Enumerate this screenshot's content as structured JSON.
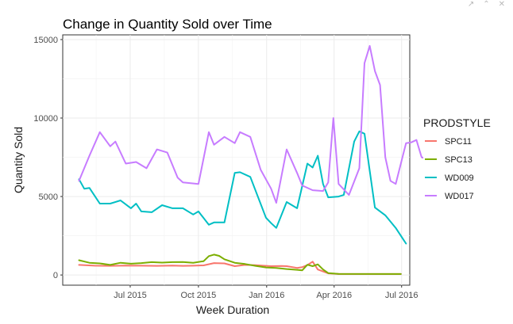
{
  "window_controls": {
    "export_icon": "↗",
    "collapse_icon": "⌃",
    "close_icon": "✕"
  },
  "chart_data": {
    "type": "line",
    "title": "Change in Quantity Sold over Time",
    "xlabel": "Week Duration",
    "ylabel": "Quantity Sold",
    "x_ticks": [
      "Jul 2015",
      "Oct 2015",
      "Jan 2016",
      "Apr 2016",
      "Jul 2016"
    ],
    "x_tick_dates": [
      "2015-07-01",
      "2015-10-01",
      "2016-01-01",
      "2016-04-01",
      "2016-07-01"
    ],
    "xlim": [
      "2015-04-01",
      "2016-07-12"
    ],
    "y_ticks": [
      "0",
      "5000",
      "10000",
      "15000"
    ],
    "y_tick_values": [
      0,
      5000,
      10000,
      15000
    ],
    "ylim": [
      -650,
      15300
    ],
    "grid": true,
    "legend_title": "PRODSTYLE",
    "legend_position": "right",
    "series": [
      {
        "name": "SPC11",
        "color": "#F8766D",
        "points": [
          [
            "2015-04-23",
            640
          ],
          [
            "2015-05-14",
            590
          ],
          [
            "2015-06-04",
            580
          ],
          [
            "2015-06-25",
            600
          ],
          [
            "2015-07-16",
            590
          ],
          [
            "2015-08-06",
            580
          ],
          [
            "2015-08-27",
            600
          ],
          [
            "2015-09-10",
            580
          ],
          [
            "2015-09-24",
            590
          ],
          [
            "2015-10-08",
            610
          ],
          [
            "2015-10-22",
            760
          ],
          [
            "2015-11-05",
            740
          ],
          [
            "2015-11-19",
            560
          ],
          [
            "2015-12-03",
            640
          ],
          [
            "2015-12-17",
            620
          ],
          [
            "2016-01-07",
            560
          ],
          [
            "2016-01-21",
            570
          ],
          [
            "2016-01-28",
            560
          ],
          [
            "2016-02-11",
            450
          ],
          [
            "2016-02-18",
            500
          ],
          [
            "2016-02-25",
            630
          ],
          [
            "2016-03-03",
            850
          ],
          [
            "2016-03-10",
            350
          ],
          [
            "2016-03-24",
            100
          ],
          [
            "2016-04-07",
            60
          ],
          [
            "2016-06-30",
            60
          ]
        ]
      },
      {
        "name": "SPC13",
        "color": "#7CAE00",
        "points": [
          [
            "2015-04-23",
            940
          ],
          [
            "2015-05-07",
            780
          ],
          [
            "2015-05-21",
            740
          ],
          [
            "2015-06-04",
            640
          ],
          [
            "2015-06-18",
            780
          ],
          [
            "2015-07-02",
            720
          ],
          [
            "2015-07-16",
            760
          ],
          [
            "2015-07-30",
            820
          ],
          [
            "2015-08-13",
            790
          ],
          [
            "2015-08-27",
            820
          ],
          [
            "2015-09-10",
            830
          ],
          [
            "2015-09-24",
            780
          ],
          [
            "2015-10-08",
            880
          ],
          [
            "2015-10-15",
            1200
          ],
          [
            "2015-10-22",
            1300
          ],
          [
            "2015-10-29",
            1220
          ],
          [
            "2015-11-05",
            1000
          ],
          [
            "2015-11-19",
            780
          ],
          [
            "2015-12-03",
            700
          ],
          [
            "2015-12-17",
            580
          ],
          [
            "2015-12-31",
            480
          ],
          [
            "2016-01-14",
            450
          ],
          [
            "2016-01-28",
            380
          ],
          [
            "2016-02-11",
            330
          ],
          [
            "2016-02-18",
            300
          ],
          [
            "2016-02-25",
            650
          ],
          [
            "2016-03-03",
            560
          ],
          [
            "2016-03-10",
            680
          ],
          [
            "2016-03-17",
            350
          ],
          [
            "2016-03-24",
            120
          ],
          [
            "2016-04-07",
            70
          ],
          [
            "2016-06-30",
            60
          ]
        ]
      },
      {
        "name": "WD009",
        "color": "#00BFC4",
        "points": [
          [
            "2015-04-23",
            6100
          ],
          [
            "2015-04-30",
            5500
          ],
          [
            "2015-05-07",
            5550
          ],
          [
            "2015-05-21",
            4550
          ],
          [
            "2015-06-04",
            4550
          ],
          [
            "2015-06-18",
            4750
          ],
          [
            "2015-07-02",
            4250
          ],
          [
            "2015-07-09",
            4550
          ],
          [
            "2015-07-16",
            4050
          ],
          [
            "2015-07-30",
            4000
          ],
          [
            "2015-08-13",
            4450
          ],
          [
            "2015-08-27",
            4250
          ],
          [
            "2015-09-10",
            4250
          ],
          [
            "2015-09-24",
            3850
          ],
          [
            "2015-10-01",
            4050
          ],
          [
            "2015-10-15",
            3200
          ],
          [
            "2015-10-22",
            3350
          ],
          [
            "2015-11-05",
            3350
          ],
          [
            "2015-11-19",
            6500
          ],
          [
            "2015-11-26",
            6550
          ],
          [
            "2015-12-10",
            6250
          ],
          [
            "2015-12-31",
            3650
          ],
          [
            "2016-01-07",
            3300
          ],
          [
            "2016-01-14",
            3000
          ],
          [
            "2016-01-28",
            4650
          ],
          [
            "2016-02-11",
            4250
          ],
          [
            "2016-02-25",
            7100
          ],
          [
            "2016-03-03",
            6850
          ],
          [
            "2016-03-10",
            7600
          ],
          [
            "2016-03-17",
            5800
          ],
          [
            "2016-03-24",
            4950
          ],
          [
            "2016-04-07",
            5000
          ],
          [
            "2016-04-14",
            5100
          ],
          [
            "2016-04-28",
            8500
          ],
          [
            "2016-05-05",
            9150
          ],
          [
            "2016-05-12",
            9000
          ],
          [
            "2016-05-26",
            4300
          ],
          [
            "2016-06-09",
            3800
          ],
          [
            "2016-06-23",
            3000
          ],
          [
            "2016-07-07",
            2000
          ]
        ]
      },
      {
        "name": "WD017",
        "color": "#C77CFF",
        "points": [
          [
            "2015-04-23",
            6000
          ],
          [
            "2015-05-07",
            7600
          ],
          [
            "2015-05-21",
            9100
          ],
          [
            "2015-06-04",
            8200
          ],
          [
            "2015-06-11",
            8500
          ],
          [
            "2015-06-25",
            7100
          ],
          [
            "2015-07-09",
            7200
          ],
          [
            "2015-07-23",
            6800
          ],
          [
            "2015-08-06",
            8000
          ],
          [
            "2015-08-20",
            7800
          ],
          [
            "2015-09-03",
            6200
          ],
          [
            "2015-09-10",
            5900
          ],
          [
            "2015-10-01",
            5800
          ],
          [
            "2015-10-15",
            9100
          ],
          [
            "2015-10-22",
            8300
          ],
          [
            "2015-11-05",
            8800
          ],
          [
            "2015-11-19",
            8400
          ],
          [
            "2015-11-26",
            9100
          ],
          [
            "2015-12-10",
            8800
          ],
          [
            "2015-12-24",
            6700
          ],
          [
            "2016-01-07",
            5500
          ],
          [
            "2016-01-14",
            4600
          ],
          [
            "2016-01-28",
            8000
          ],
          [
            "2016-02-11",
            6500
          ],
          [
            "2016-02-18",
            5700
          ],
          [
            "2016-03-03",
            5400
          ],
          [
            "2016-03-17",
            5350
          ],
          [
            "2016-03-24",
            5900
          ],
          [
            "2016-03-31",
            10000
          ],
          [
            "2016-04-07",
            5800
          ],
          [
            "2016-04-21",
            5100
          ],
          [
            "2016-05-05",
            6800
          ],
          [
            "2016-05-12",
            13500
          ],
          [
            "2016-05-19",
            14600
          ],
          [
            "2016-05-26",
            13000
          ],
          [
            "2016-06-02",
            12100
          ],
          [
            "2016-06-09",
            7500
          ],
          [
            "2016-06-16",
            6000
          ],
          [
            "2016-06-23",
            5800
          ],
          [
            "2016-06-30",
            7100
          ],
          [
            "2016-07-07",
            8400
          ],
          [
            "2016-07-14",
            8450
          ],
          [
            "2016-07-21",
            8600
          ],
          [
            "2016-07-28",
            7500
          ],
          [
            "2016-08-04",
            7400
          ]
        ]
      }
    ]
  }
}
